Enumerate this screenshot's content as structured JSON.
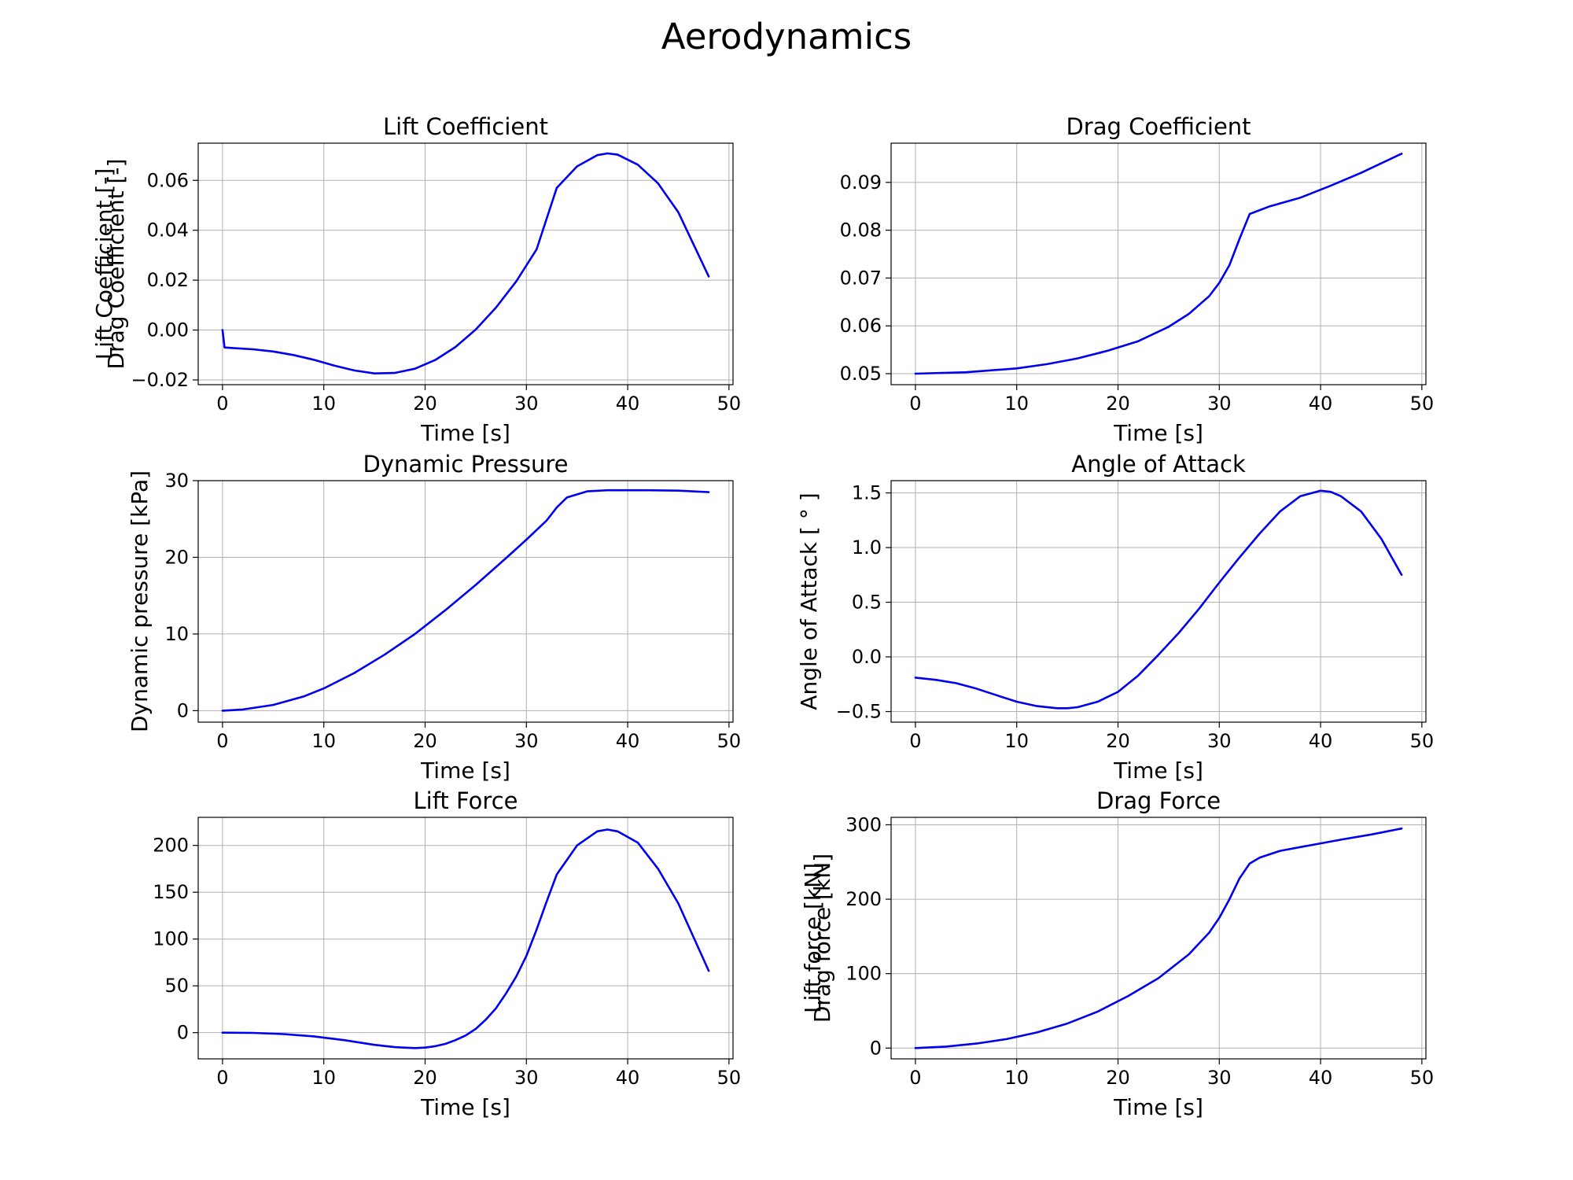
{
  "figure": {
    "title": "Aerodynamics"
  },
  "chart_data": [
    {
      "type": "line",
      "title": "Lift Coefficient",
      "xlabel": "Time [s]",
      "ylabel": "Lift Coefficient [-]",
      "xlim": [
        -2.4,
        50.4
      ],
      "ylim": [
        -0.0219,
        0.0749
      ],
      "xticks": [
        0,
        10,
        20,
        30,
        40,
        50
      ],
      "xtick_labels": [
        "0",
        "10",
        "20",
        "30",
        "40",
        "50"
      ],
      "yticks": [
        -0.02,
        0.0,
        0.02,
        0.04,
        0.06
      ],
      "ytick_labels": [
        "−0.02",
        "0.00",
        "0.02",
        "0.04",
        "0.06"
      ],
      "grid": true,
      "series": [
        {
          "color": "#0000ee",
          "x": [
            0,
            0.2,
            1,
            3,
            5,
            7,
            9,
            11,
            13,
            15,
            17,
            19,
            21,
            23,
            25,
            27,
            29,
            31,
            33,
            35,
            37,
            38,
            39,
            41,
            43,
            45,
            48
          ],
          "y": [
            0.0,
            -0.007,
            -0.0072,
            -0.0077,
            -0.0086,
            -0.01,
            -0.0119,
            -0.0142,
            -0.0162,
            -0.0174,
            -0.0172,
            -0.0155,
            -0.012,
            -0.0068,
            0.0002,
            0.009,
            0.0195,
            0.0323,
            0.057,
            0.0656,
            0.0701,
            0.0708,
            0.0703,
            0.0663,
            0.0588,
            0.0472,
            0.0215
          ]
        }
      ]
    },
    {
      "type": "line",
      "title": "Drag Coefficient",
      "xlabel": "Time [s]",
      "ylabel": "Drag Coefficient [-]",
      "xlim": [
        -2.4,
        50.4
      ],
      "ylim": [
        0.0477,
        0.0982
      ],
      "xticks": [
        0,
        10,
        20,
        30,
        40,
        50
      ],
      "xtick_labels": [
        "0",
        "10",
        "20",
        "30",
        "40",
        "50"
      ],
      "yticks": [
        0.05,
        0.06,
        0.07,
        0.08,
        0.09
      ],
      "ytick_labels": [
        "0.05",
        "0.06",
        "0.07",
        "0.08",
        "0.09"
      ],
      "grid": true,
      "series": [
        {
          "color": "#0000ee",
          "x": [
            0,
            5,
            10,
            13,
            16,
            19,
            22,
            25,
            27,
            29,
            30,
            31,
            32,
            33,
            35,
            38,
            41,
            44,
            48
          ],
          "y": [
            0.05,
            0.0503,
            0.0511,
            0.052,
            0.0532,
            0.0548,
            0.0568,
            0.0598,
            0.0625,
            0.0662,
            0.069,
            0.0727,
            0.0782,
            0.0834,
            0.085,
            0.0868,
            0.0893,
            0.092,
            0.096
          ]
        }
      ]
    },
    {
      "type": "line",
      "title": "Dynamic Pressure",
      "xlabel": "Time [s]",
      "ylabel": "Dynamic pressure [kPa]",
      "xlim": [
        -2.4,
        50.4
      ],
      "ylim": [
        -1.5,
        30.0
      ],
      "xticks": [
        0,
        10,
        20,
        30,
        40,
        50
      ],
      "xtick_labels": [
        "0",
        "10",
        "20",
        "30",
        "40",
        "50"
      ],
      "yticks": [
        0,
        10,
        20,
        30
      ],
      "ytick_labels": [
        "0",
        "10",
        "20",
        "30"
      ],
      "grid": true,
      "series": [
        {
          "color": "#0000ee",
          "x": [
            0,
            2,
            5,
            8,
            10,
            13,
            16,
            19,
            22,
            25,
            28,
            30,
            32,
            33,
            34,
            36,
            38,
            40,
            42,
            45,
            48
          ],
          "y": [
            0.0,
            0.15,
            0.75,
            1.85,
            2.9,
            4.9,
            7.3,
            10.0,
            13.1,
            16.4,
            19.9,
            22.3,
            24.8,
            26.5,
            27.8,
            28.6,
            28.75,
            28.75,
            28.75,
            28.7,
            28.5
          ]
        }
      ]
    },
    {
      "type": "line",
      "title": "Angle of Attack",
      "xlabel": "Time [s]",
      "ylabel": "Angle of Attack [ ° ]",
      "xlim": [
        -2.4,
        50.4
      ],
      "ylim": [
        -0.597,
        1.612
      ],
      "xticks": [
        0,
        10,
        20,
        30,
        40,
        50
      ],
      "xtick_labels": [
        "0",
        "10",
        "20",
        "30",
        "40",
        "50"
      ],
      "yticks": [
        -0.5,
        0.0,
        0.5,
        1.0,
        1.5
      ],
      "ytick_labels": [
        "−0.5",
        "0.0",
        "0.5",
        "1.0",
        "1.5"
      ],
      "grid": true,
      "series": [
        {
          "color": "#0000ee",
          "x": [
            0,
            2,
            4,
            6,
            8,
            10,
            12,
            14,
            15,
            16,
            18,
            20,
            22,
            24,
            26,
            28,
            30,
            32,
            34,
            36,
            38,
            40,
            41,
            42,
            44,
            46,
            48
          ],
          "y": [
            -0.19,
            -0.21,
            -0.24,
            -0.29,
            -0.35,
            -0.41,
            -0.45,
            -0.47,
            -0.47,
            -0.46,
            -0.41,
            -0.32,
            -0.17,
            0.02,
            0.22,
            0.44,
            0.68,
            0.91,
            1.13,
            1.33,
            1.47,
            1.52,
            1.51,
            1.47,
            1.33,
            1.08,
            0.75
          ]
        }
      ]
    },
    {
      "type": "line",
      "title": "Lift Force",
      "xlabel": "Time [s]",
      "ylabel": "Lift force [kN]",
      "xlim": [
        -2.4,
        50.4
      ],
      "ylim": [
        -28.0,
        230.0
      ],
      "xticks": [
        0,
        10,
        20,
        30,
        40,
        50
      ],
      "xtick_labels": [
        "0",
        "10",
        "20",
        "30",
        "40",
        "50"
      ],
      "yticks": [
        0,
        50,
        100,
        150,
        200
      ],
      "ytick_labels": [
        "0",
        "50",
        "100",
        "150",
        "200"
      ],
      "grid": true,
      "series": [
        {
          "color": "#0000ee",
          "x": [
            0,
            3,
            6,
            9,
            12,
            15,
            17,
            19,
            20,
            21,
            22,
            23,
            24,
            25,
            26,
            27,
            28,
            29,
            30,
            31,
            32,
            33,
            35,
            37,
            38,
            39,
            41,
            43,
            45,
            48
          ],
          "y": [
            0,
            -0.3,
            -1.5,
            -4,
            -8,
            -13,
            -15.5,
            -16.5,
            -16,
            -14.5,
            -12,
            -8,
            -3,
            4,
            14,
            26,
            42,
            60,
            82,
            110,
            140,
            169,
            200,
            215,
            217,
            215,
            203,
            175,
            138,
            66
          ]
        }
      ]
    },
    {
      "type": "line",
      "title": "Drag Force",
      "xlabel": "Time [s]",
      "ylabel": "Drag force [kN]",
      "xlim": [
        -2.4,
        50.4
      ],
      "ylim": [
        -14.5,
        310.0
      ],
      "xticks": [
        0,
        10,
        20,
        30,
        40,
        50
      ],
      "xtick_labels": [
        "0",
        "10",
        "20",
        "30",
        "40",
        "50"
      ],
      "yticks": [
        0,
        100,
        200,
        300
      ],
      "ytick_labels": [
        "0",
        "100",
        "200",
        "300"
      ],
      "grid": true,
      "series": [
        {
          "color": "#0000ee",
          "x": [
            0,
            3,
            6,
            9,
            12,
            15,
            18,
            21,
            24,
            27,
            29,
            30,
            31,
            32,
            33,
            34,
            36,
            38,
            40,
            42,
            45,
            48
          ],
          "y": [
            0,
            2,
            6,
            12,
            21,
            33,
            49,
            70,
            94,
            126,
            155,
            175,
            200,
            228,
            248,
            256,
            265,
            270,
            275,
            280,
            287,
            295
          ]
        }
      ]
    }
  ]
}
